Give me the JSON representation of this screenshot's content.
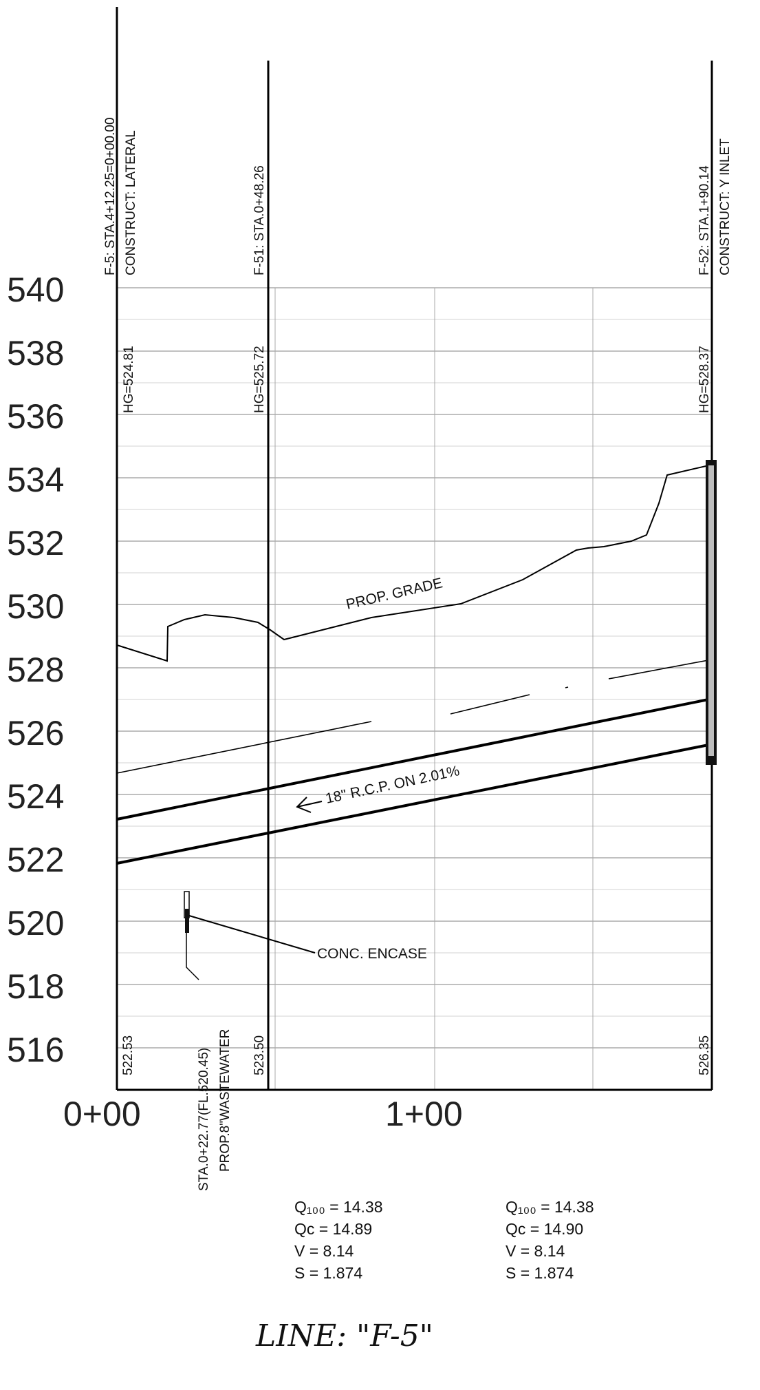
{
  "elevation_axis": {
    "labels": [
      "540",
      "538",
      "536",
      "534",
      "532",
      "530",
      "528",
      "526",
      "524",
      "522",
      "520",
      "518",
      "516"
    ]
  },
  "station_axis": {
    "labels": [
      "0+00",
      "1+00"
    ]
  },
  "structures": {
    "f5": {
      "line1": "F-5: STA.4+12.25=0+00.00",
      "line2": "CONSTRUCT: LATERAL",
      "hg": "HG=524.81",
      "fl": "522.53"
    },
    "f51": {
      "line1": "F-51: STA.0+48.26",
      "hg": "HG=525.72",
      "fl": "523.50"
    },
    "f52": {
      "line1": "F-52: STA.1+90.14",
      "line2": "CONSTRUCT: Y INLET",
      "hg": "HG=528.37",
      "fl": "526.35"
    }
  },
  "crossing": {
    "line1": "STA.0+22.77(FL.520.45)",
    "line2": "PROP.8\"WASTEWATER"
  },
  "callouts": {
    "grade": "PROP. GRADE",
    "pipe": "18\" R.C.P. ON 2.01%",
    "encase": "CONC. ENCASE"
  },
  "hydraulics": {
    "left": {
      "q100": "Q₁₀₀  =  14.38",
      "qc": "Qc   =  14.89",
      "v": "V  =  8.14",
      "s": "S  =  1.874"
    },
    "right": {
      "q100": "Q₁₀₀  =  14.38",
      "qc": "Qc   =  14.90",
      "v": "V  =  8.14",
      "s": "S  =  1.874"
    }
  },
  "title": "LINE:  \"F-5\""
}
